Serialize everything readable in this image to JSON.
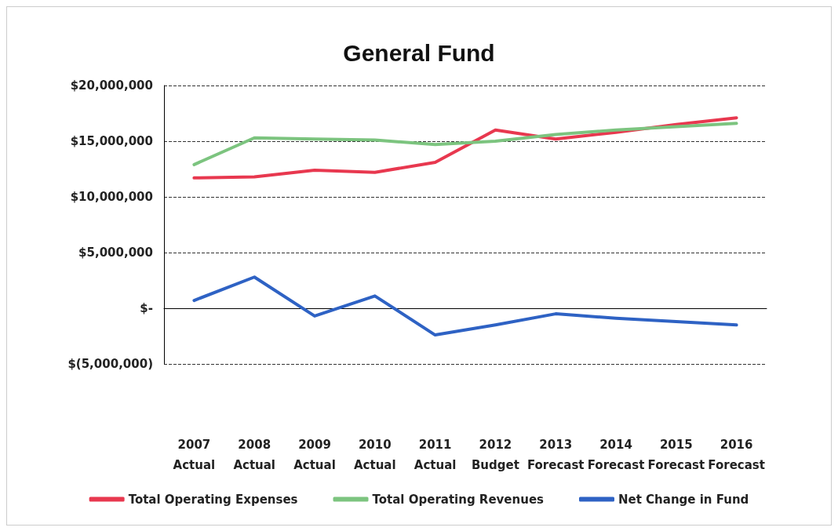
{
  "chart_data": {
    "type": "line",
    "title": "General Fund",
    "categories": [
      "2007\nActual",
      "2008\nActual",
      "2009\nActual",
      "2010\nActual",
      "2011\nActual",
      "2012\nBudget",
      "2013\nForecast",
      "2014\nForecast",
      "2015\nForecast",
      "2016\nForecast"
    ],
    "series": [
      {
        "name": "Total Operating Expenses",
        "color": "#e8384f",
        "values": [
          11700000,
          11800000,
          12400000,
          12200000,
          13100000,
          16000000,
          15200000,
          15800000,
          16500000,
          17100000
        ]
      },
      {
        "name": "Total Operating Revenues",
        "color": "#7cc47f",
        "values": [
          12900000,
          15300000,
          15200000,
          15100000,
          14700000,
          15000000,
          15600000,
          16000000,
          16300000,
          16600000
        ]
      },
      {
        "name": "Net Change in Fund",
        "color": "#2e62c4",
        "values": [
          700000,
          2800000,
          -700000,
          1100000,
          -2400000,
          -1500000,
          -500000,
          -900000,
          -1200000,
          -1500000
        ]
      }
    ],
    "ylim": [
      -5000000,
      20000000
    ],
    "yticks": [
      {
        "value": -5000000,
        "label": "$(5,000,000)"
      },
      {
        "value": 0,
        "label": "$-"
      },
      {
        "value": 5000000,
        "label": "$5,000,000"
      },
      {
        "value": 10000000,
        "label": "$10,000,000"
      },
      {
        "value": 15000000,
        "label": "$15,000,000"
      },
      {
        "value": 20000000,
        "label": "$20,000,000"
      }
    ],
    "grid": "y",
    "legend": "bottom",
    "marker": "none",
    "line_style": "solid"
  }
}
